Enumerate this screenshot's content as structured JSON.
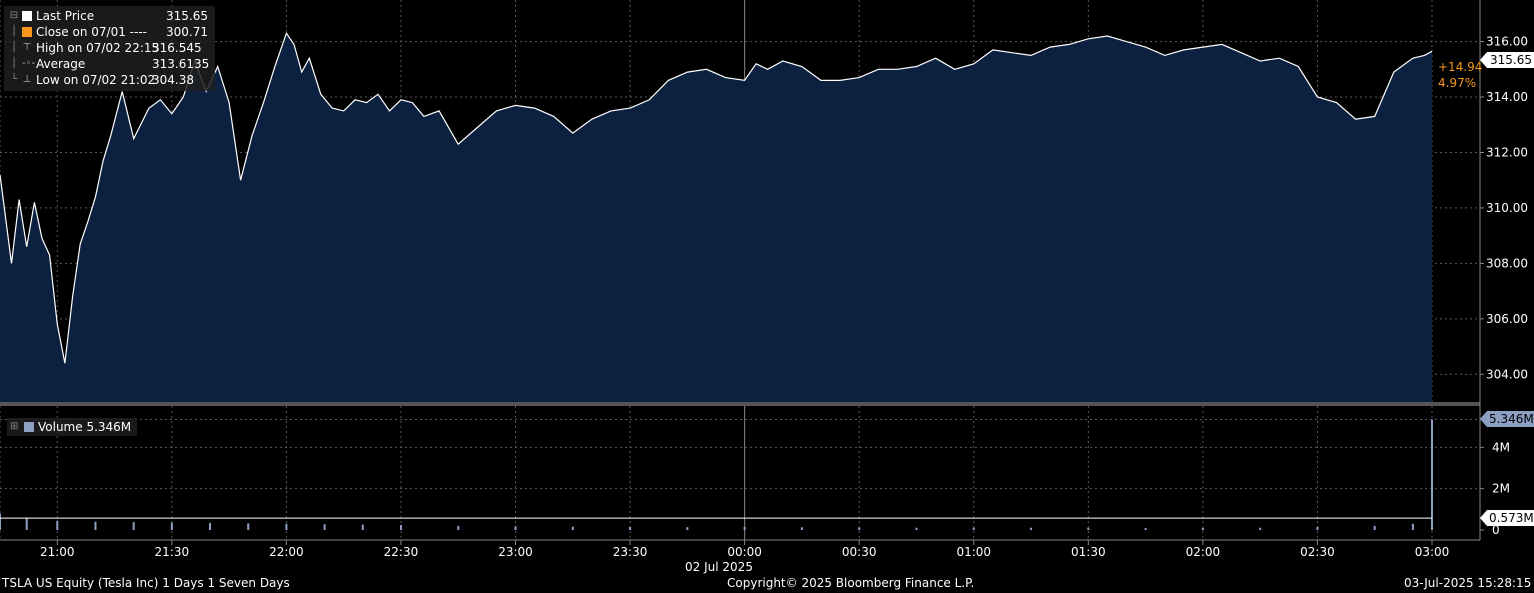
{
  "legend": {
    "last_price_label": "Last Price",
    "last_price_value": "315.65",
    "close_label": "Close on 07/01 ----",
    "close_value": "300.71",
    "high_label": "High on 07/02 22:15",
    "high_value": "316.545",
    "average_label": "Average",
    "average_value": "313.6135",
    "low_label": "Low on 07/02 21:02",
    "low_value": "304.38"
  },
  "volume_legend": {
    "label": "Volume 5.346M"
  },
  "price_badges": {
    "last_price": "315.65",
    "change": "+14.94",
    "change_pct": "4.97%"
  },
  "volume_badges": {
    "last_volume": "5.346M",
    "average_volume": "0.573M"
  },
  "footer": {
    "left": "TSLA US Equity (Tesla Inc) 1 Days 1 Seven Days",
    "center": "Copyright© 2025 Bloomberg Finance L.P.",
    "right": "03-Jul-2025 15:28:15"
  },
  "date_label": "02 Jul 2025",
  "colors": {
    "area_fill": "#0c2140",
    "line": "#ffffff",
    "close_swatch": "#f5961e",
    "volume_bar": "#8d9fc2",
    "change_text": "#f5961e",
    "grid": "#5a5a5a"
  },
  "chart_data": [
    {
      "type": "area",
      "ylim": [
        303,
        317.5
      ],
      "yticks": [
        304,
        306,
        308,
        310,
        312,
        314,
        316
      ],
      "ytick_labels": [
        "304.00",
        "306.00",
        "308.00",
        "310.00",
        "312.00",
        "314.00",
        "316.00"
      ],
      "xticks": [
        "20:45",
        "21:00",
        "21:30",
        "22:00",
        "22:30",
        "23:00",
        "23:30",
        "00:00",
        "00:30",
        "01:00",
        "01:30",
        "02:00",
        "02:30",
        "03:00"
      ],
      "xtick_labels": [
        "",
        "21:00",
        "21:30",
        "22:00",
        "22:30",
        "23:00",
        "23:30",
        "00:00",
        "00:30",
        "01:00",
        "01:30",
        "02:00",
        "02:30",
        "03:00"
      ],
      "x": [
        "20:45",
        "20:48",
        "20:50",
        "20:52",
        "20:54",
        "20:56",
        "20:58",
        "21:00",
        "21:02",
        "21:04",
        "21:06",
        "21:08",
        "21:10",
        "21:12",
        "21:14",
        "21:17",
        "21:20",
        "21:24",
        "21:27",
        "21:30",
        "21:33",
        "21:36",
        "21:39",
        "21:42",
        "21:45",
        "21:48",
        "21:51",
        "21:54",
        "21:57",
        "22:00",
        "22:02",
        "22:04",
        "22:06",
        "22:09",
        "22:12",
        "22:15",
        "22:18",
        "22:21",
        "22:24",
        "22:27",
        "22:30",
        "22:33",
        "22:36",
        "22:40",
        "22:45",
        "22:50",
        "22:55",
        "23:00",
        "23:05",
        "23:10",
        "23:15",
        "23:20",
        "23:25",
        "23:30",
        "23:35",
        "23:40",
        "23:45",
        "23:50",
        "23:55",
        "00:00",
        "00:03",
        "00:06",
        "00:10",
        "00:15",
        "00:20",
        "00:25",
        "00:30",
        "00:35",
        "00:40",
        "00:45",
        "00:50",
        "00:55",
        "01:00",
        "01:05",
        "01:10",
        "01:15",
        "01:20",
        "01:25",
        "01:30",
        "01:35",
        "01:40",
        "01:45",
        "01:50",
        "01:55",
        "02:00",
        "02:05",
        "02:10",
        "02:15",
        "02:20",
        "02:25",
        "02:30",
        "02:35",
        "02:40",
        "02:45",
        "02:50",
        "02:55",
        "02:58",
        "03:00"
      ],
      "series": [
        {
          "values": [
            311.2,
            308.0,
            310.3,
            308.6,
            310.2,
            308.9,
            308.3,
            305.8,
            304.4,
            306.8,
            308.7,
            309.5,
            310.4,
            311.7,
            312.6,
            314.2,
            312.5,
            313.6,
            313.9,
            313.4,
            314.0,
            315.3,
            314.2,
            315.1,
            313.8,
            311.0,
            312.6,
            313.8,
            315.1,
            316.3,
            315.9,
            314.9,
            315.4,
            314.1,
            313.6,
            313.5,
            313.9,
            313.8,
            314.1,
            313.5,
            313.9,
            313.8,
            313.3,
            313.5,
            312.3,
            312.9,
            313.5,
            313.7,
            313.6,
            313.3,
            312.7,
            313.2,
            313.5,
            313.6,
            313.9,
            314.6,
            314.9,
            315.0,
            314.7,
            314.6,
            315.2,
            315.0,
            315.3,
            315.1,
            314.6,
            314.6,
            314.7,
            315.0,
            315.0,
            315.1,
            315.4,
            315.0,
            315.2,
            315.7,
            315.6,
            315.5,
            315.8,
            315.9,
            316.1,
            316.2,
            316.0,
            315.8,
            315.5,
            315.7,
            315.8,
            315.9,
            315.6,
            315.3,
            315.4,
            315.1,
            314.0,
            313.8,
            313.2,
            313.3,
            314.9,
            315.4,
            315.5,
            315.65
          ]
        }
      ]
    },
    {
      "type": "bar",
      "title": "Volume",
      "ylim": [
        0,
        6000000
      ],
      "yticks": [
        0,
        2000000,
        4000000
      ],
      "ytick_labels": [
        "0",
        "2M",
        "4M"
      ],
      "x": [
        "20:45",
        "20:52",
        "21:00",
        "21:10",
        "21:20",
        "21:30",
        "21:40",
        "21:50",
        "22:00",
        "22:10",
        "22:20",
        "22:30",
        "22:45",
        "23:00",
        "23:15",
        "23:30",
        "23:45",
        "00:00",
        "00:15",
        "00:30",
        "00:45",
        "01:00",
        "01:15",
        "01:30",
        "01:45",
        "02:00",
        "02:15",
        "02:30",
        "02:45",
        "02:55",
        "03:00"
      ],
      "values": [
        800000,
        600000,
        450000,
        400000,
        380000,
        360000,
        340000,
        320000,
        300000,
        280000,
        260000,
        240000,
        200000,
        180000,
        160000,
        150000,
        140000,
        150000,
        130000,
        120000,
        110000,
        110000,
        110000,
        110000,
        100000,
        100000,
        110000,
        150000,
        200000,
        300000,
        5346000
      ],
      "average_line": 573000
    }
  ]
}
